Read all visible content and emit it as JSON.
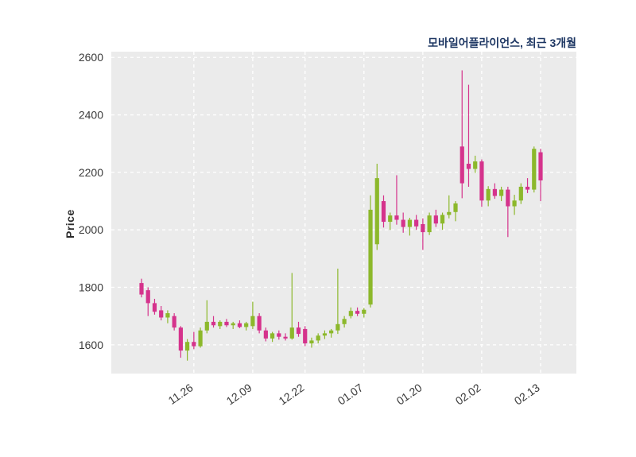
{
  "chart_data": {
    "type": "candlestick",
    "title": "모바일어플라이언스, 최근 3개월",
    "ylabel": "Price",
    "xlabel": "",
    "ylim": [
      1500,
      2620
    ],
    "yticks": [
      1600,
      1800,
      2000,
      2200,
      2400,
      2600
    ],
    "xticks": [
      {
        "index": 8,
        "label": "11.26"
      },
      {
        "index": 17,
        "label": "12.09"
      },
      {
        "index": 25,
        "label": "12.22"
      },
      {
        "index": 34,
        "label": "01.07"
      },
      {
        "index": 43,
        "label": "01.20"
      },
      {
        "index": 52,
        "label": "02.02"
      },
      {
        "index": 61,
        "label": "02.13"
      }
    ],
    "grid": "white-dashed",
    "plot_bg_color": "#ebebeb",
    "up_color": "#8CB82B",
    "down_color": "#D5338C",
    "tick_color": "#3a3a3a",
    "candles_format": [
      "open",
      "high",
      "low",
      "close"
    ],
    "candles": [
      [
        1815,
        1830,
        1765,
        1775
      ],
      [
        1790,
        1800,
        1700,
        1745
      ],
      [
        1745,
        1760,
        1705,
        1715
      ],
      [
        1720,
        1735,
        1685,
        1695
      ],
      [
        1695,
        1720,
        1675,
        1710
      ],
      [
        1700,
        1710,
        1650,
        1660
      ],
      [
        1660,
        1665,
        1555,
        1580
      ],
      [
        1580,
        1620,
        1545,
        1610
      ],
      [
        1610,
        1645,
        1585,
        1595
      ],
      [
        1595,
        1660,
        1590,
        1650
      ],
      [
        1650,
        1755,
        1640,
        1680
      ],
      [
        1680,
        1700,
        1660,
        1668
      ],
      [
        1665,
        1685,
        1655,
        1680
      ],
      [
        1680,
        1690,
        1662,
        1668
      ],
      [
        1668,
        1680,
        1655,
        1675
      ],
      [
        1675,
        1685,
        1658,
        1662
      ],
      [
        1662,
        1680,
        1650,
        1675
      ],
      [
        1665,
        1750,
        1655,
        1700
      ],
      [
        1700,
        1710,
        1640,
        1650
      ],
      [
        1650,
        1660,
        1612,
        1622
      ],
      [
        1622,
        1645,
        1610,
        1640
      ],
      [
        1640,
        1650,
        1618,
        1628
      ],
      [
        1628,
        1640,
        1615,
        1622
      ],
      [
        1622,
        1850,
        1618,
        1660
      ],
      [
        1660,
        1680,
        1628,
        1638
      ],
      [
        1655,
        1665,
        1595,
        1605
      ],
      [
        1605,
        1625,
        1590,
        1615
      ],
      [
        1615,
        1640,
        1605,
        1632
      ],
      [
        1632,
        1650,
        1620,
        1640
      ],
      [
        1640,
        1655,
        1625,
        1650
      ],
      [
        1650,
        1865,
        1638,
        1672
      ],
      [
        1672,
        1700,
        1660,
        1690
      ],
      [
        1700,
        1730,
        1692,
        1718
      ],
      [
        1718,
        1730,
        1700,
        1708
      ],
      [
        1708,
        1728,
        1695,
        1722
      ],
      [
        1740,
        2120,
        1730,
        2070
      ],
      [
        1950,
        2230,
        1930,
        2180
      ],
      [
        2100,
        2120,
        2008,
        2028
      ],
      [
        2028,
        2060,
        2000,
        2050
      ],
      [
        2050,
        2190,
        2018,
        2035
      ],
      [
        2035,
        2060,
        1990,
        2010
      ],
      [
        2010,
        2042,
        1980,
        2035
      ],
      [
        2035,
        2052,
        2000,
        2012
      ],
      [
        2020,
        2040,
        1930,
        1992
      ],
      [
        1992,
        2060,
        1982,
        2050
      ],
      [
        2050,
        2070,
        2010,
        2022
      ],
      [
        2022,
        2060,
        2000,
        2052
      ],
      [
        2052,
        2120,
        2040,
        2062
      ],
      [
        2062,
        2100,
        2030,
        2092
      ],
      [
        2290,
        2555,
        2110,
        2162
      ],
      [
        2230,
        2505,
        2150,
        2212
      ],
      [
        2212,
        2258,
        2198,
        2238
      ],
      [
        2238,
        2245,
        2080,
        2102
      ],
      [
        2102,
        2152,
        2082,
        2142
      ],
      [
        2142,
        2162,
        2108,
        2118
      ],
      [
        2118,
        2150,
        2100,
        2140
      ],
      [
        2140,
        2150,
        1975,
        2082
      ],
      [
        2082,
        2122,
        2052,
        2102
      ],
      [
        2102,
        2162,
        2090,
        2150
      ],
      [
        2150,
        2180,
        2128,
        2140
      ],
      [
        2140,
        2290,
        2130,
        2282
      ],
      [
        2270,
        2282,
        2100,
        2172
      ]
    ]
  }
}
